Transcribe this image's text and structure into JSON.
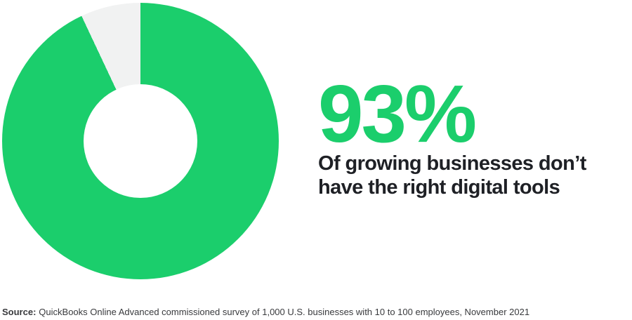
{
  "chart_data": {
    "type": "pie",
    "donut": true,
    "title": "93%",
    "subtitle": "Of growing businesses don't have the right digital tools",
    "values": [
      93,
      7
    ],
    "colors": [
      "#1BCE6C",
      "#F1F2F2"
    ],
    "start_angle_deg": 0,
    "direction": "clockwise",
    "legend": "none",
    "hole_ratio": 0.41
  },
  "stat": {
    "value": "93%",
    "lines": {
      "line1": "Of growing businesses don’t",
      "line2": "have the right digital tools"
    }
  },
  "source": {
    "label": "Source:",
    "text": "QuickBooks Online Advanced commissioned survey of 1,000 U.S. businesses with 10 to 100 employees, November 2021"
  },
  "palette": {
    "accent_green": "#1BCE6C",
    "slice_gray": "#F1F2F2",
    "headline_text": "#1E2025",
    "source_text": "#393A3D",
    "background": "#FFFFFF"
  }
}
